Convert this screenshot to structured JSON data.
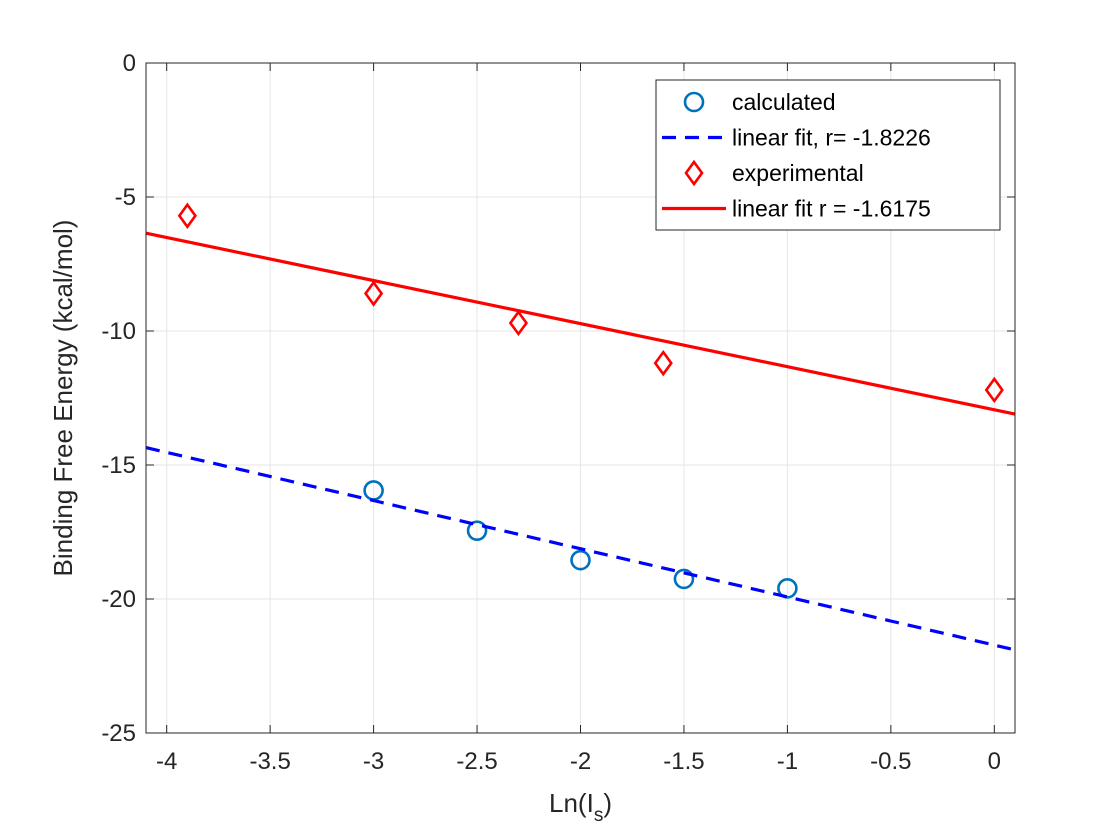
{
  "chart_data": {
    "type": "scatter",
    "xlabel": "Ln(I",
    "xlabel_sub": "s",
    "xlabel_suffix": ")",
    "ylabel": "Binding Free Energy (kcal/mol)",
    "xlim": [
      -4.1,
      0.1
    ],
    "ylim": [
      -25,
      0
    ],
    "grid": true,
    "legend_position": "top-right",
    "x_ticks": [
      -4,
      -3.5,
      -3,
      -2.5,
      -2,
      -1.5,
      -1,
      -0.5,
      0
    ],
    "x_tick_labels": [
      "-4",
      "-3.5",
      "-3",
      "-2.5",
      "-2",
      "-1.5",
      "-1",
      "-0.5",
      "0"
    ],
    "y_ticks": [
      0,
      -5,
      -10,
      -15,
      -20,
      -25
    ],
    "y_tick_labels": [
      "0",
      "-5",
      "-10",
      "-15",
      "-20",
      "-25"
    ],
    "series": [
      {
        "name": "calculated",
        "kind": "markers",
        "marker": "circle",
        "color": "#0072BD",
        "x": [
          -3,
          -2.5,
          -2,
          -1.5,
          -1
        ],
        "y": [
          -15.95,
          -17.45,
          -18.55,
          -19.25,
          -19.6
        ]
      },
      {
        "name": "linear fit, r=  -1.8226",
        "kind": "line",
        "style": "dashed",
        "color": "#0000FF",
        "x": [
          -4.1,
          0.1
        ],
        "y": [
          -14.35,
          -21.9
        ]
      },
      {
        "name": "experimental",
        "kind": "markers",
        "marker": "diamond",
        "color": "#FF0000",
        "x": [
          -3.9,
          -3,
          -2.3,
          -1.6,
          0
        ],
        "y": [
          -5.7,
          -8.6,
          -9.7,
          -11.2,
          -12.2
        ]
      },
      {
        "name": "linear fit r = -1.6175",
        "kind": "line",
        "style": "solid",
        "color": "#FF0000",
        "x": [
          -4.1,
          0.1
        ],
        "y": [
          -6.35,
          -13.1
        ]
      }
    ]
  }
}
